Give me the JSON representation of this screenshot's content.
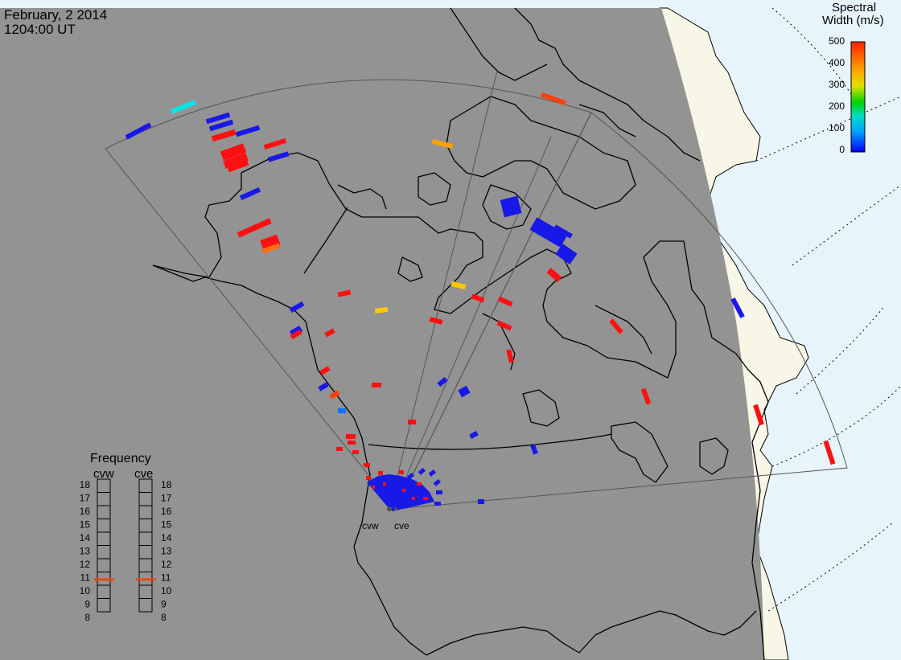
{
  "header": {
    "date": "February, 2 2014",
    "time": "1204:00 UT"
  },
  "colorbar": {
    "title_line1": "Spectral",
    "title_line2": "Width (m/s)",
    "ticks": [
      "500",
      "400",
      "300",
      "200",
      "100",
      "0"
    ],
    "colors": [
      "#0000ff",
      "#00a0ff",
      "#00e0c0",
      "#00d000",
      "#e0e000",
      "#ffa000",
      "#ff2000"
    ]
  },
  "frequency_panel": {
    "title": "Frequency",
    "radar_left": "cvw",
    "radar_right": "cve",
    "scale": [
      "18",
      "17",
      "16",
      "15",
      "14",
      "13",
      "12",
      "11",
      "10",
      "9",
      "8"
    ],
    "cvw_marker_mhz": 10.8,
    "cve_marker_mhz": 10.8,
    "marker_color": "#e84a10"
  },
  "radar_sites": {
    "left_label": "cvw",
    "right_label": "cve"
  },
  "colors": {
    "night": "#939393",
    "day": "#e8f4fb",
    "land_day": "#f8f6e6",
    "coast": "#000000"
  }
}
